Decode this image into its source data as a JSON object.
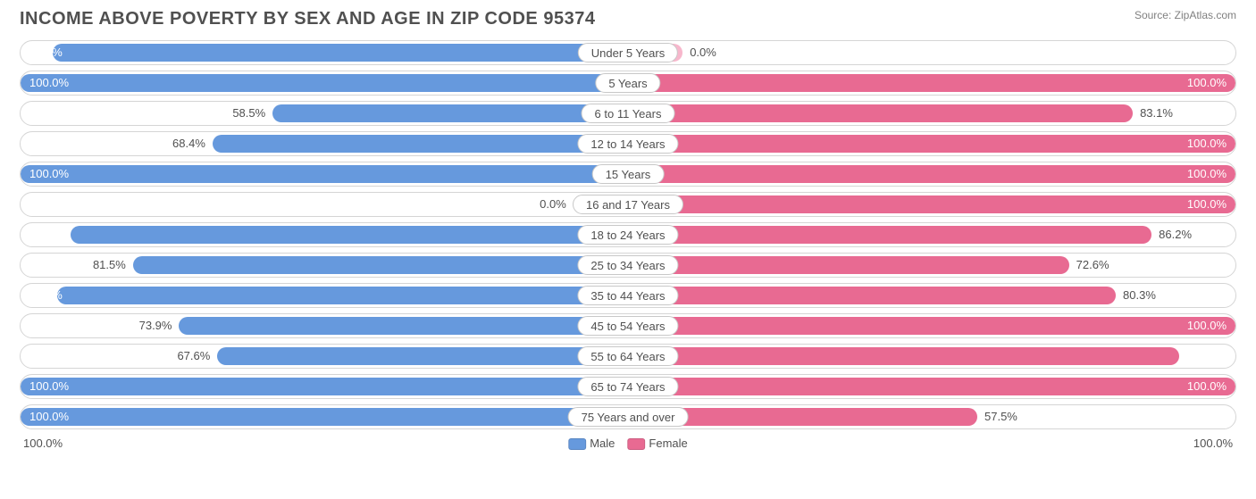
{
  "title": "INCOME ABOVE POVERTY BY SEX AND AGE IN ZIP CODE 95374",
  "source": "Source: ZipAtlas.com",
  "chart": {
    "type": "bidirectional-bar",
    "male_color": "#6699dd",
    "male_color_zero": "#aecdf0",
    "female_color": "#e86a92",
    "female_color_zero": "#f7b7cc",
    "row_border": "#d5d5d5",
    "pill_border": "#c8c8c8",
    "bg": "#ffffff",
    "text_color": "#505050",
    "axis_left": "100.0%",
    "axis_right": "100.0%",
    "legend": [
      {
        "label": "Male",
        "color": "#6699dd"
      },
      {
        "label": "Female",
        "color": "#e86a92"
      }
    ],
    "rows": [
      {
        "category": "Under 5 Years",
        "male": 94.7,
        "female": 0.0
      },
      {
        "category": "5 Years",
        "male": 100.0,
        "female": 100.0
      },
      {
        "category": "6 to 11 Years",
        "male": 58.5,
        "female": 83.1
      },
      {
        "category": "12 to 14 Years",
        "male": 68.4,
        "female": 100.0
      },
      {
        "category": "15 Years",
        "male": 100.0,
        "female": 100.0
      },
      {
        "category": "16 and 17 Years",
        "male": 0.0,
        "female": 100.0
      },
      {
        "category": "18 to 24 Years",
        "male": 91.7,
        "female": 86.2
      },
      {
        "category": "25 to 34 Years",
        "male": 81.5,
        "female": 72.6
      },
      {
        "category": "35 to 44 Years",
        "male": 93.9,
        "female": 80.3
      },
      {
        "category": "45 to 54 Years",
        "male": 73.9,
        "female": 100.0
      },
      {
        "category": "55 to 64 Years",
        "male": 67.6,
        "female": 90.7
      },
      {
        "category": "65 to 74 Years",
        "male": 100.0,
        "female": 100.0
      },
      {
        "category": "75 Years and over",
        "male": 100.0,
        "female": 57.5
      }
    ],
    "zero_bar_min_width_pct": 9
  }
}
